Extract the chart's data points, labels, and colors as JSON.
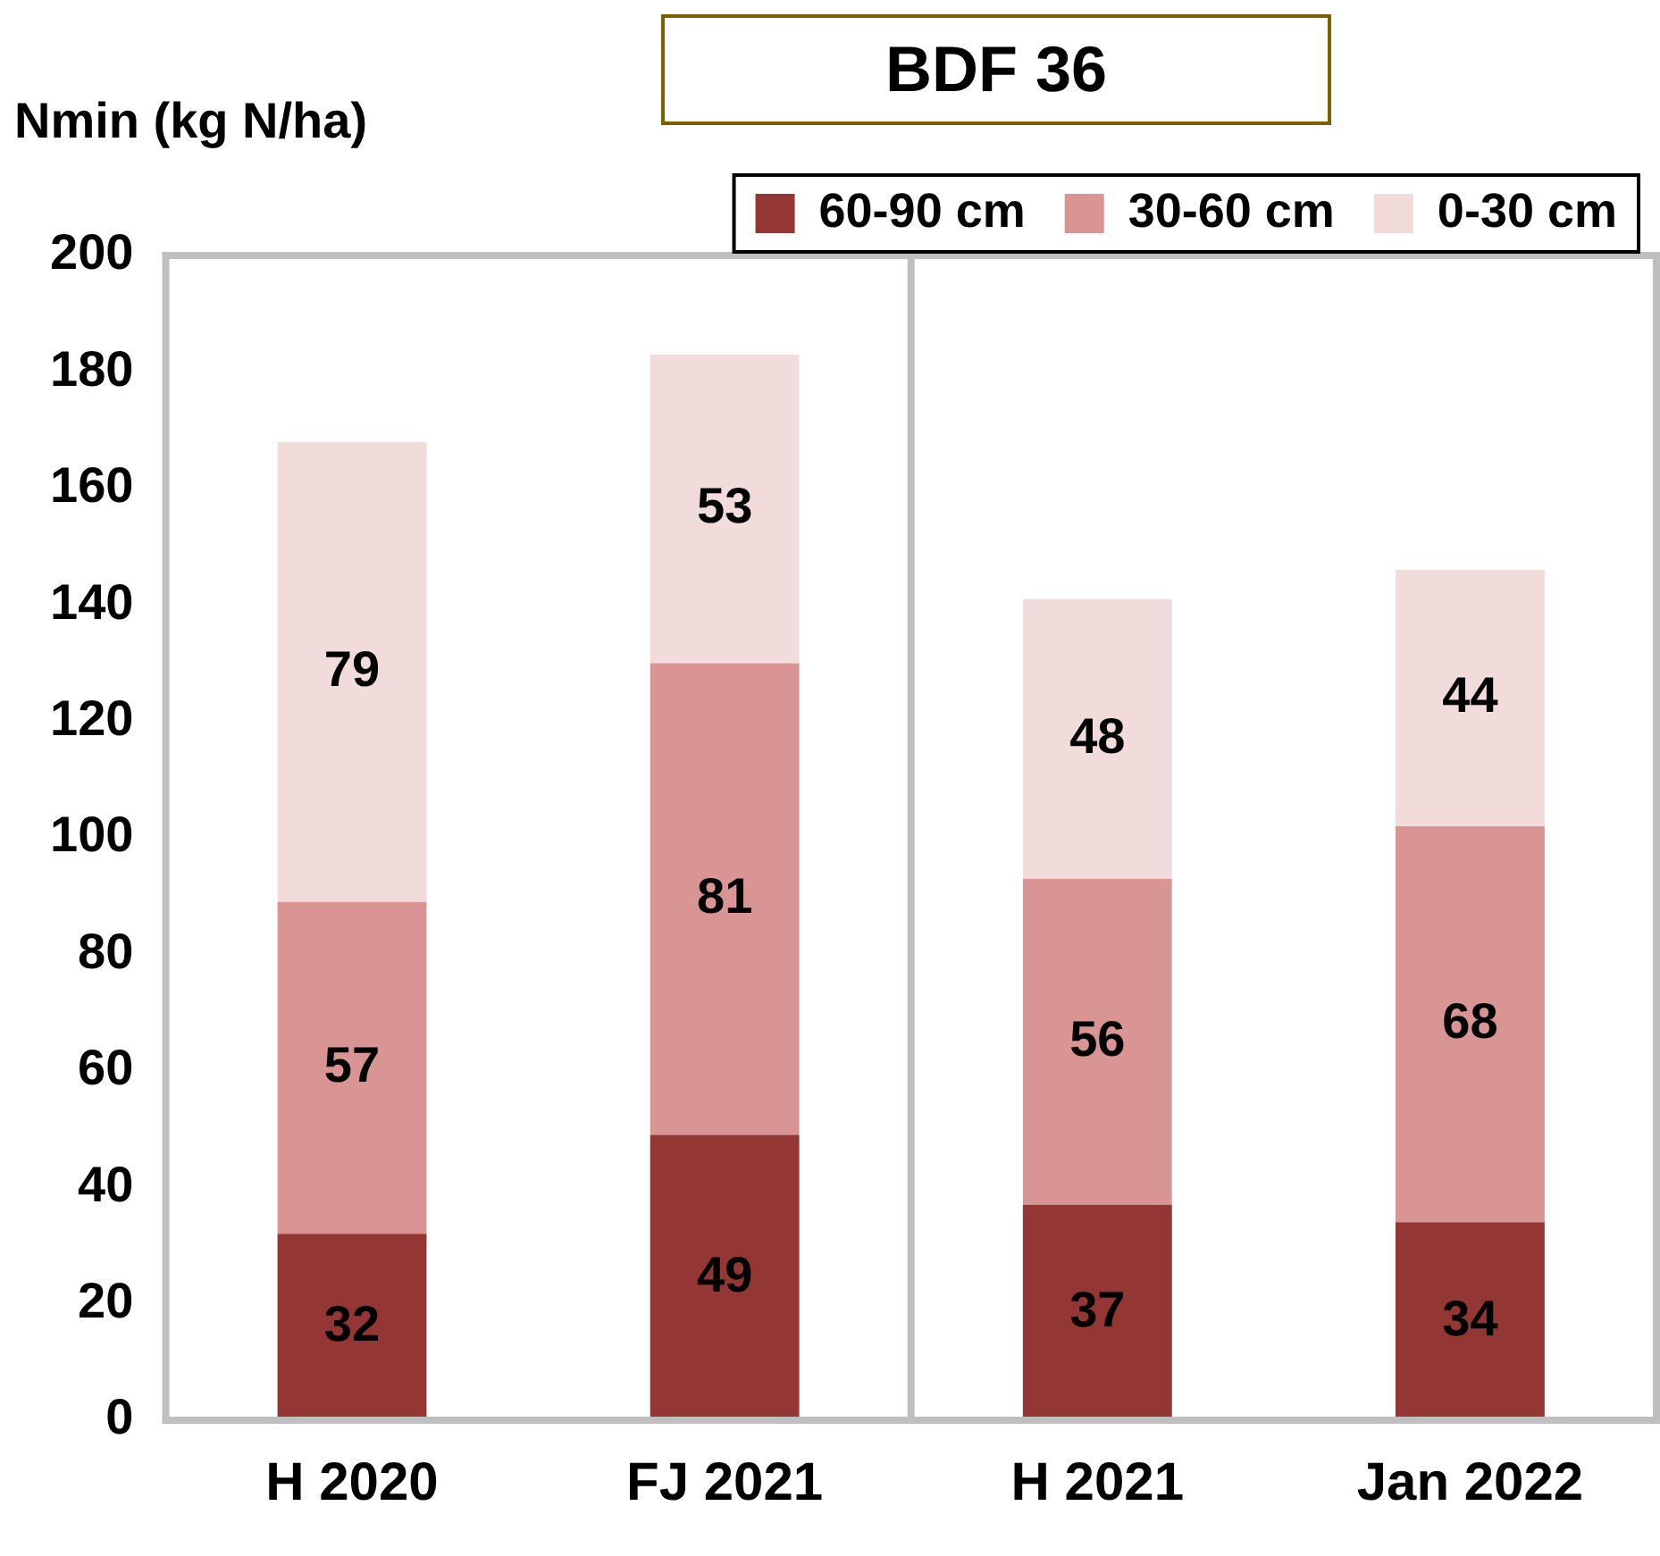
{
  "chart_data": {
    "type": "bar",
    "title": "BDF 36",
    "ylabel": "Nmin (kg N/ha)",
    "categories": [
      "H 2020",
      "FJ 2021",
      "H 2021",
      "Jan 2022"
    ],
    "series": [
      {
        "name": "60-90 cm",
        "color": "#943634",
        "values": [
          32,
          49,
          37,
          34
        ]
      },
      {
        "name": "30-60 cm",
        "color": "#d99594",
        "values": [
          57,
          81,
          56,
          68
        ]
      },
      {
        "name": "0-30 cm",
        "color": "#f2dcdb",
        "values": [
          79,
          53,
          48,
          44
        ]
      }
    ],
    "stacked": true,
    "ylim": [
      0,
      200
    ],
    "yticks": [
      0,
      20,
      40,
      60,
      80,
      100,
      120,
      140,
      160,
      180,
      200
    ],
    "grid": false,
    "legend": "top right",
    "data_labels": true
  }
}
